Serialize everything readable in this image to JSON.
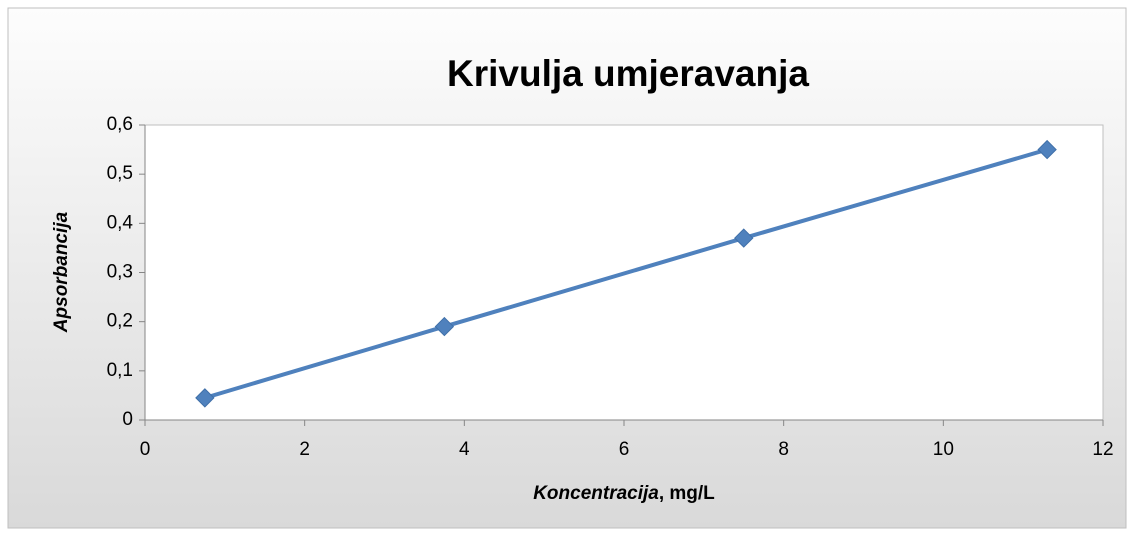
{
  "chart_data": {
    "type": "scatter-line",
    "title": "Krivulja umjeravanja",
    "xlabel": [
      "Koncentracija",
      ", mg/L"
    ],
    "ylabel": "Apsorbancija",
    "x": [
      0.75,
      3.75,
      7.5,
      11.3
    ],
    "values": [
      0.045,
      0.19,
      0.37,
      0.55
    ],
    "color": "#4f81bd",
    "xlim": [
      0,
      12
    ],
    "xticks": [
      0,
      2,
      4,
      6,
      8,
      10,
      12
    ],
    "ylim": [
      0,
      0.6
    ],
    "yticks": [
      0,
      {
        "value": 0.1,
        "label": "0,1"
      },
      {
        "value": 0.2,
        "label": "0,2"
      },
      {
        "value": 0.3,
        "label": "0,3"
      },
      {
        "value": 0.4,
        "label": "0,4"
      },
      {
        "value": 0.5,
        "label": "0,5"
      },
      {
        "value": 0.6,
        "label": "0,6"
      }
    ],
    "grid": false
  }
}
